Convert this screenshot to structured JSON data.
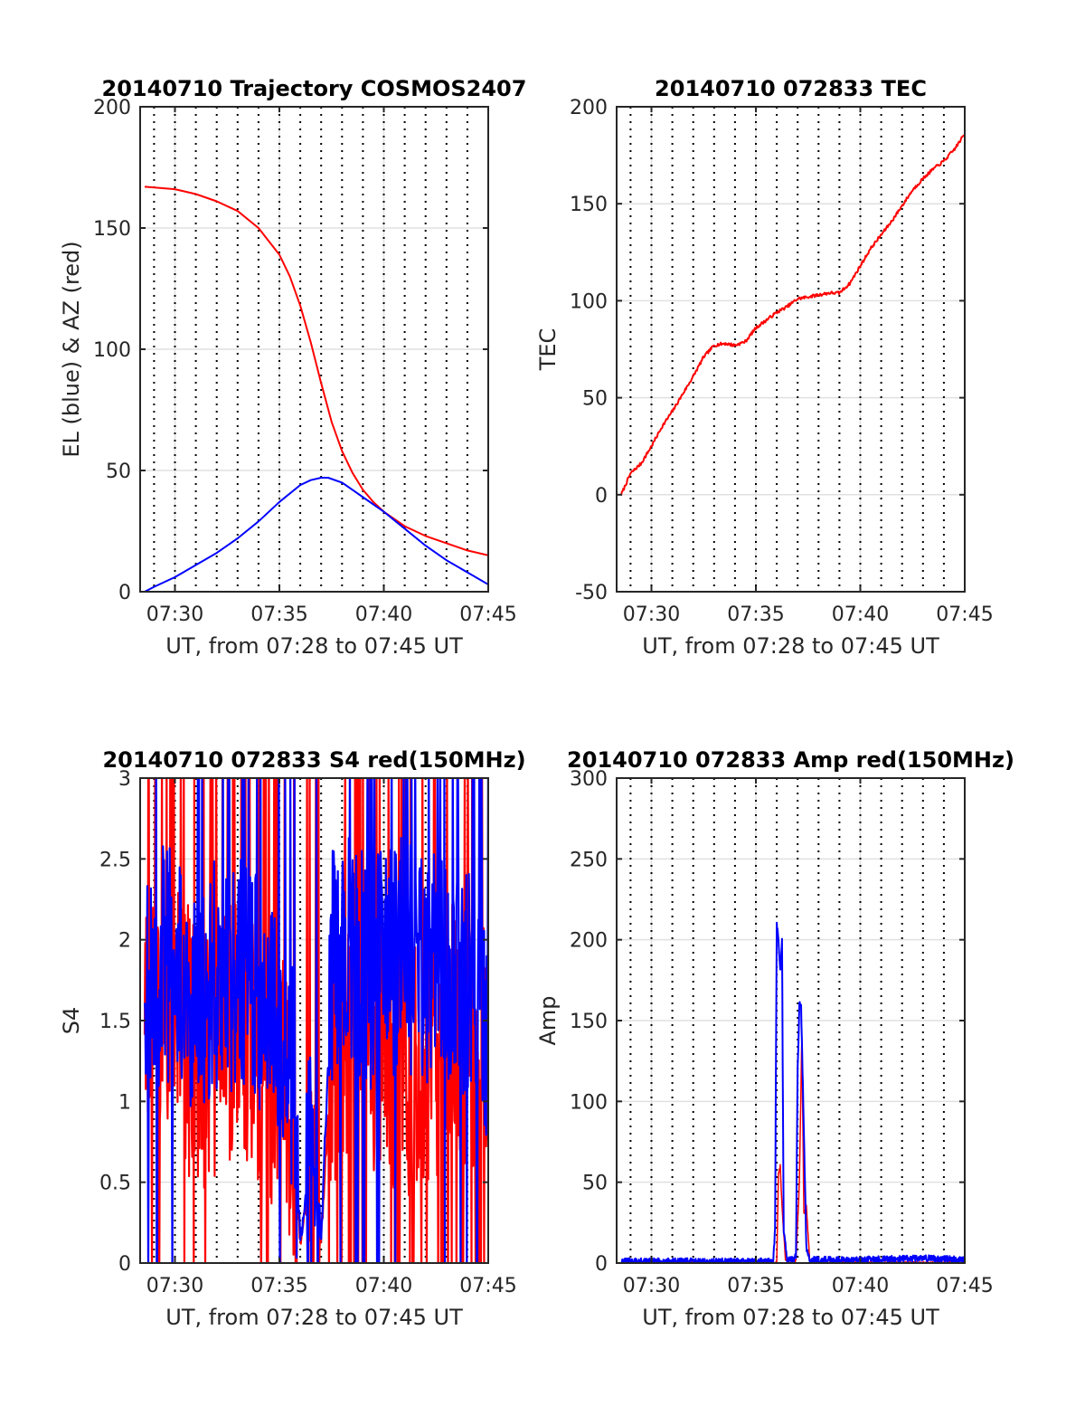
{
  "colors": {
    "red": "#ff0000",
    "blue": "#0000ff",
    "grid": "#e0e0e0",
    "vline": "#000000"
  },
  "chart_data": [
    {
      "type": "line",
      "title": "20140710 Trajectory COSMOS2407",
      "ylabel": "EL (blue) & AZ (red)",
      "xlabel": "UT, from 07:28 to 07:45 UT",
      "xlim": [
        "07:28:20",
        "07:45:00"
      ],
      "ylim": [
        0,
        200
      ],
      "yticks": [
        0,
        50,
        100,
        150,
        200
      ],
      "yticklabels": [
        "0",
        "50",
        "100",
        "150",
        "200"
      ],
      "xticklabels": [
        "07:30",
        "07:35",
        "07:40",
        "07:45"
      ],
      "grid": true,
      "series": [
        {
          "color": "red",
          "x": [
            "07:28:33",
            "07:30",
            "07:31",
            "07:32",
            "07:33",
            "07:34",
            "07:35",
            "07:35:30",
            "07:36",
            "07:36:30",
            "07:37",
            "07:37:30",
            "07:38",
            "07:38:30",
            "07:39",
            "07:39:30",
            "07:40",
            "07:41",
            "07:42",
            "07:43",
            "07:44",
            "07:45"
          ],
          "values": [
            167,
            166,
            164,
            161,
            157,
            150,
            139,
            130,
            118,
            103,
            86,
            70,
            58,
            49,
            42,
            37,
            33,
            27,
            23,
            20,
            17,
            15
          ]
        },
        {
          "color": "blue",
          "x": [
            "07:28:33",
            "07:29",
            "07:30",
            "07:31",
            "07:32",
            "07:33",
            "07:34",
            "07:35",
            "07:36",
            "07:36:30",
            "07:37",
            "07:37:20",
            "07:38",
            "07:38:30",
            "07:39",
            "07:40",
            "07:41",
            "07:42",
            "07:43",
            "07:44",
            "07:45"
          ],
          "values": [
            0,
            2,
            6,
            11,
            16,
            22,
            29,
            37,
            44,
            46,
            47,
            47,
            45,
            42,
            39,
            33,
            26,
            19,
            13,
            8,
            3
          ]
        }
      ]
    },
    {
      "type": "line",
      "title": "20140710 072833 TEC",
      "ylabel": "TEC",
      "xlabel": "UT, from 07:28 to 07:45 UT",
      "xlim": [
        "07:28:20",
        "07:45:00"
      ],
      "ylim": [
        -50,
        200
      ],
      "yticks": [
        -50,
        0,
        50,
        100,
        150,
        200
      ],
      "yticklabels": [
        "-50",
        "0",
        "50",
        "100",
        "150",
        "200"
      ],
      "xticklabels": [
        "07:30",
        "07:35",
        "07:40",
        "07:45"
      ],
      "grid": true,
      "series": [
        {
          "color": "red",
          "x": [
            "07:28:33",
            "07:29",
            "07:29:30",
            "07:30",
            "07:30:30",
            "07:31",
            "07:31:30",
            "07:32",
            "07:32:30",
            "07:33",
            "07:33:30",
            "07:34",
            "07:34:30",
            "07:35",
            "07:35:30",
            "07:36",
            "07:36:30",
            "07:37",
            "07:37:30",
            "07:38",
            "07:38:30",
            "07:39",
            "07:39:30",
            "07:40",
            "07:40:30",
            "07:41",
            "07:41:30",
            "07:42",
            "07:42:30",
            "07:43",
            "07:43:30",
            "07:44",
            "07:44:30",
            "07:45"
          ],
          "values": [
            0,
            11,
            16,
            25,
            35,
            43,
            52,
            61,
            71,
            77,
            78,
            77,
            79,
            86,
            90,
            94,
            97,
            101,
            102,
            103,
            104,
            104,
            109,
            118,
            127,
            134,
            141,
            149,
            157,
            163,
            168,
            172,
            178,
            186
          ]
        }
      ]
    },
    {
      "type": "line",
      "title": "20140710 072833 S4 red(150MHz)",
      "ylabel": "S4",
      "xlabel": "UT, from 07:28 to 07:45 UT",
      "xlim": [
        "07:28:20",
        "07:45:00"
      ],
      "ylim": [
        0,
        3
      ],
      "yticks": [
        0,
        0.5,
        1,
        1.5,
        2,
        2.5,
        3
      ],
      "yticklabels": [
        "0",
        "0.5",
        "1",
        "1.5",
        "2",
        "2.5",
        "3"
      ],
      "xticklabels": [
        "07:30",
        "07:35",
        "07:40",
        "07:45"
      ],
      "grid": true,
      "series": [
        {
          "color": "red",
          "x": [
            "07:28:33",
            "07:29:30",
            "07:30:30",
            "07:31:30",
            "07:32:30",
            "07:33:30",
            "07:34:30",
            "07:35:30",
            "07:36",
            "07:36:30",
            "07:37",
            "07:37:30",
            "07:38:30",
            "07:39:30",
            "07:40:30",
            "07:41:30",
            "07:42:30",
            "07:43:30",
            "07:44:30",
            "07:45"
          ],
          "values": [
            1.5,
            1.8,
            1.4,
            1.3,
            1.5,
            1.4,
            1.2,
            1.0,
            0.15,
            0.5,
            0.15,
            1.3,
            1.5,
            1.4,
            1.3,
            1.2,
            1.3,
            1.4,
            1.3,
            1.2
          ]
        },
        {
          "color": "blue",
          "x": [
            "07:28:33",
            "07:29:30",
            "07:30:30",
            "07:31:30",
            "07:32:30",
            "07:33:30",
            "07:34:30",
            "07:35:30",
            "07:36",
            "07:36:30",
            "07:37",
            "07:37:30",
            "07:38:30",
            "07:39:30",
            "07:40:30",
            "07:41:30",
            "07:42:30",
            "07:43:30",
            "07:44:30",
            "07:45"
          ],
          "values": [
            1.7,
            1.9,
            1.7,
            1.7,
            1.8,
            1.8,
            1.6,
            1.4,
            0.15,
            0.6,
            0.15,
            1.8,
            1.9,
            1.8,
            1.9,
            1.9,
            1.8,
            1.8,
            1.7,
            1.5
          ]
        }
      ]
    },
    {
      "type": "line",
      "title": "20140710 072833 Amp red(150MHz)",
      "ylabel": "Amp",
      "xlabel": "UT, from 07:28 to 07:45 UT",
      "xlim": [
        "07:28:20",
        "07:45:00"
      ],
      "ylim": [
        0,
        300
      ],
      "yticks": [
        0,
        50,
        100,
        150,
        200,
        250,
        300
      ],
      "yticklabels": [
        "0",
        "50",
        "100",
        "150",
        "200",
        "250",
        "300"
      ],
      "xticklabels": [
        "07:30",
        "07:35",
        "07:40",
        "07:45"
      ],
      "grid": true,
      "series": [
        {
          "color": "red",
          "x": [
            "07:28:33",
            "07:35:50",
            "07:36",
            "07:36:05",
            "07:36:10",
            "07:36:15",
            "07:36:25",
            "07:36:40",
            "07:36:55",
            "07:37:05",
            "07:37:12",
            "07:37:18",
            "07:37:25",
            "07:37:35",
            "07:45"
          ],
          "values": [
            0,
            0,
            1,
            55,
            60,
            35,
            2,
            1,
            1,
            50,
            140,
            30,
            35,
            0,
            0
          ]
        },
        {
          "color": "blue",
          "x": [
            "07:28:33",
            "07:35:50",
            "07:35:55",
            "07:36",
            "07:36:05",
            "07:36:10",
            "07:36:15",
            "07:36:20",
            "07:36:30",
            "07:36:45",
            "07:36:55",
            "07:37",
            "07:37:05",
            "07:37:10",
            "07:37:15",
            "07:37:20",
            "07:37:25",
            "07:37:35",
            "07:40",
            "07:43",
            "07:45"
          ],
          "values": [
            1,
            1,
            20,
            210,
            200,
            180,
            199,
            20,
            2,
            2,
            4,
            120,
            160,
            158,
            110,
            60,
            10,
            2,
            2,
            3,
            2
          ]
        }
      ]
    }
  ]
}
